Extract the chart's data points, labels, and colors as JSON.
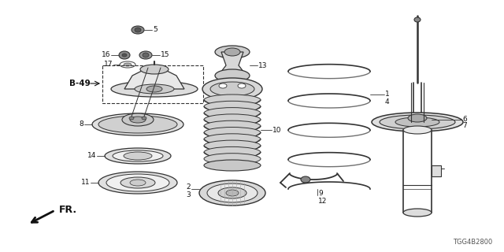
{
  "bg_color": "#ffffff",
  "diagram_code": "TGG4B2800",
  "line_color": "#333333",
  "text_color": "#111111",
  "font_size_label": 6.5,
  "font_size_code": 6.0,
  "font_size_b49": 7.5,
  "layout": {
    "figw": 6.4,
    "figh": 3.2,
    "dpi": 100
  }
}
